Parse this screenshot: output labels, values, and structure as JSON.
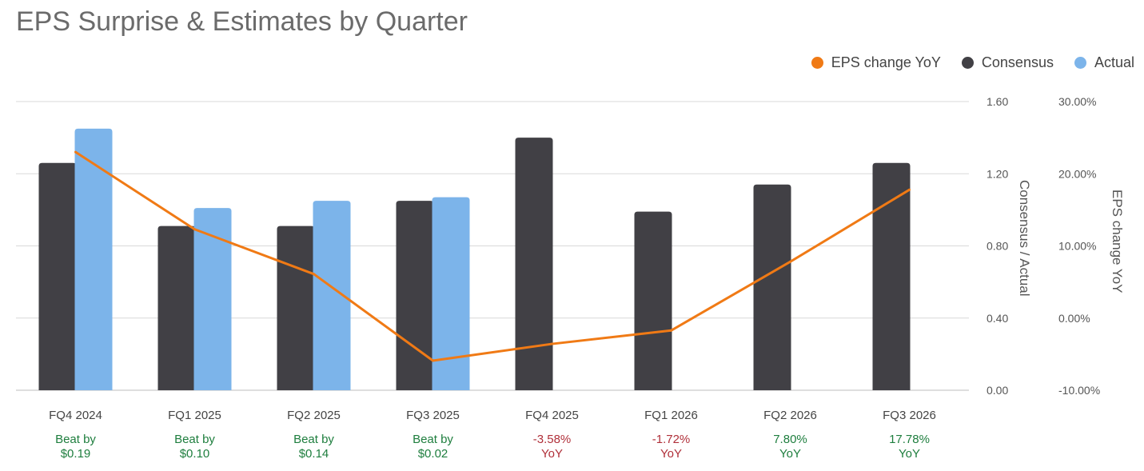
{
  "chart_data": {
    "type": "bar",
    "title": "EPS Surprise & Estimates by Quarter",
    "categories": [
      "FQ4 2024",
      "FQ1 2025",
      "FQ2 2025",
      "FQ3 2025",
      "FQ4 2025",
      "FQ1 2026",
      "FQ2 2026",
      "FQ3 2026"
    ],
    "series": [
      {
        "name": "Consensus",
        "kind": "bar",
        "axis": "left",
        "color": "#414045",
        "values": [
          1.26,
          0.91,
          0.91,
          1.05,
          1.4,
          0.99,
          1.14,
          1.26
        ]
      },
      {
        "name": "Actual",
        "kind": "bar",
        "axis": "left",
        "color": "#7cb4ea",
        "values": [
          1.45,
          1.01,
          1.05,
          1.07,
          null,
          null,
          null,
          null
        ]
      },
      {
        "name": "EPS change YoY",
        "kind": "line",
        "axis": "right",
        "color": "#f07a15",
        "values": [
          23.0,
          12.3,
          6.1,
          -5.9,
          -3.58,
          -1.72,
          7.8,
          17.78
        ]
      }
    ],
    "legend_order": [
      "EPS change YoY",
      "Consensus",
      "Actual"
    ],
    "legend_position": "top-right",
    "left_axis": {
      "label": "Consensus / Actual",
      "range": [
        0,
        1.6
      ],
      "ticks": [
        "0.00",
        "0.40",
        "0.80",
        "1.20",
        "1.60"
      ]
    },
    "right_axis": {
      "label": "EPS change YoY",
      "range": [
        -10,
        30
      ],
      "ticks": [
        "-10.00%",
        "0.00%",
        "10.00%",
        "20.00%",
        "30.00%"
      ]
    },
    "grid": true,
    "annotations": [
      {
        "line1": "Beat by",
        "line2": "$0.19",
        "color": "#1e7e3e"
      },
      {
        "line1": "Beat by",
        "line2": "$0.10",
        "color": "#1e7e3e"
      },
      {
        "line1": "Beat by",
        "line2": "$0.14",
        "color": "#1e7e3e"
      },
      {
        "line1": "Beat by",
        "line2": "$0.02",
        "color": "#1e7e3e"
      },
      {
        "line1": "-3.58%",
        "line2": "YoY",
        "color": "#b0303a"
      },
      {
        "line1": "-1.72%",
        "line2": "YoY",
        "color": "#b0303a"
      },
      {
        "line1": "7.80%",
        "line2": "YoY",
        "color": "#1e7e3e"
      },
      {
        "line1": "17.78%",
        "line2": "YoY",
        "color": "#1e7e3e"
      }
    ]
  }
}
